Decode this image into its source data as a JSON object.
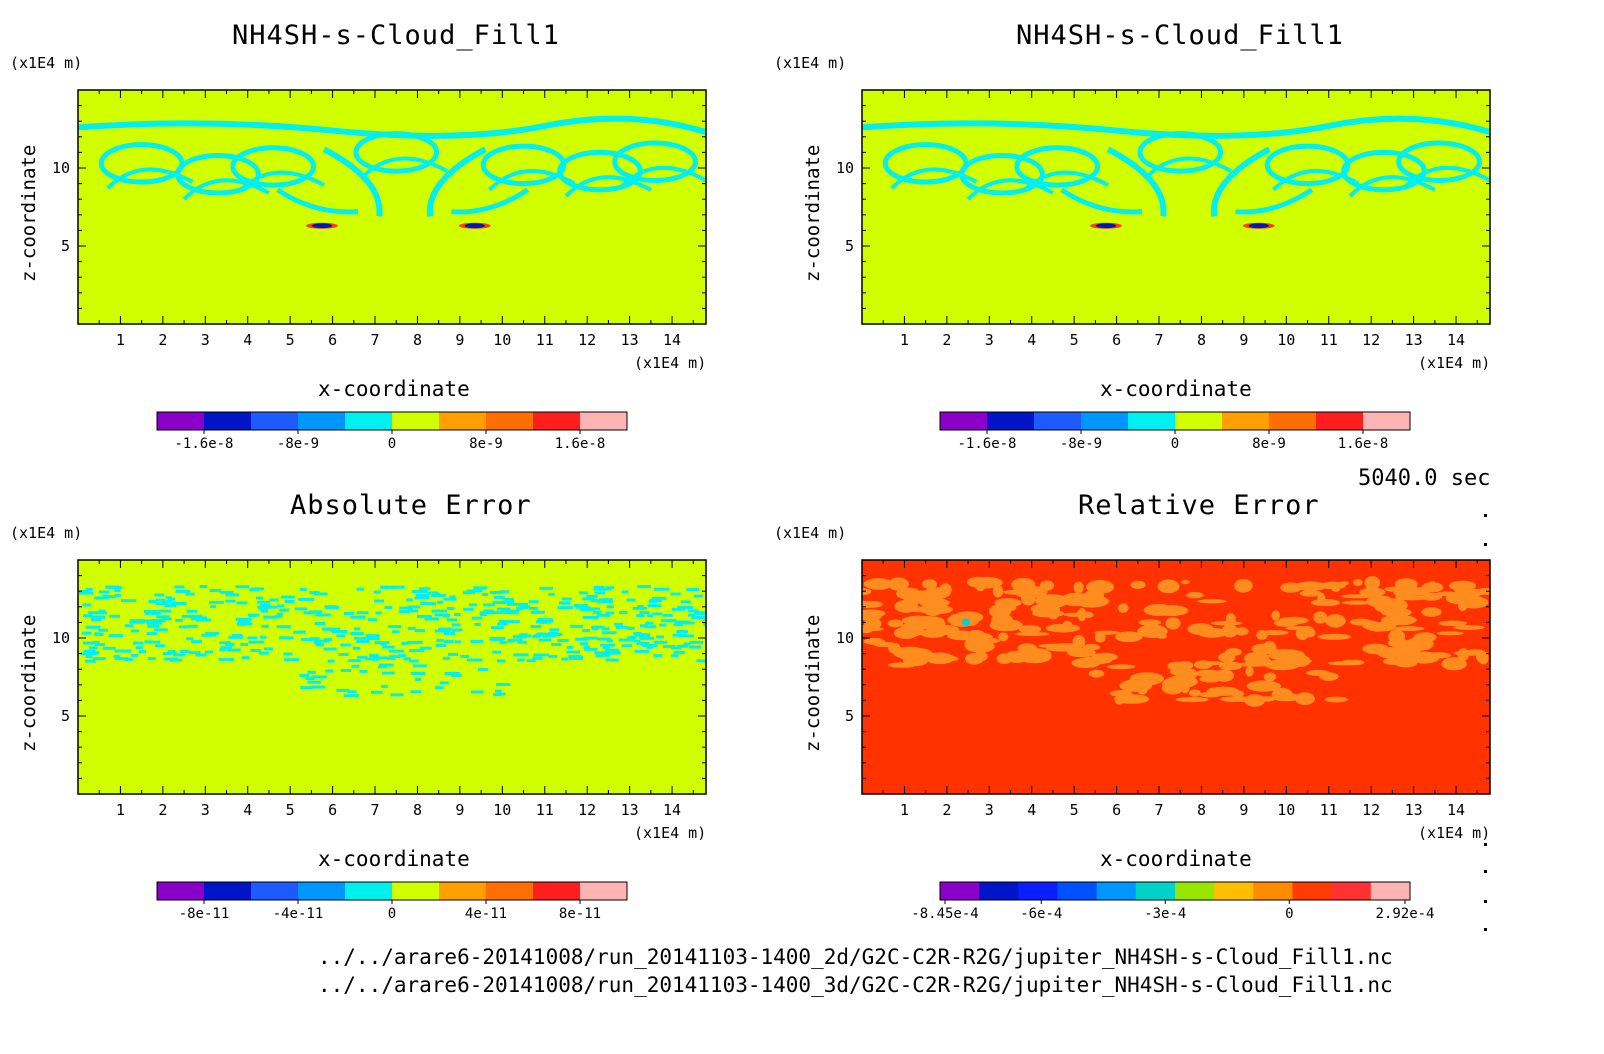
{
  "time_label": "5040.0 sec",
  "file_paths": [
    "../../arare6-20141008/run_20141103-1400_2d/G2C-C2R-R2G/jupiter_NH4SH-s-Cloud_Fill1.nc",
    "../../arare6-20141008/run_20141103-1400_3d/G2C-C2R-R2G/jupiter_NH4SH-s-Cloud_Fill1.nc"
  ],
  "palettes": {
    "main": [
      "#8a00c8",
      "#0014c8",
      "#1e5aff",
      "#0096ff",
      "#00f0f0",
      "#d2ff00",
      "#ffa000",
      "#ff6e00",
      "#ff1e1e",
      "#ffb4b4"
    ],
    "rel": [
      "#8a00c8",
      "#0014c8",
      "#0a1eff",
      "#0050ff",
      "#0096ff",
      "#00d2c8",
      "#96e600",
      "#ffbe00",
      "#ff8c00",
      "#ff3c00",
      "#ff3232",
      "#ffb4b4"
    ]
  },
  "chart_data": [
    {
      "type": "heatmap",
      "title": "NH4SH-s-Cloud_Fill1",
      "xlabel": "x-coordinate",
      "ylabel": "z-coordinate",
      "x_unit": "(x1E4 m)",
      "y_unit": "(x1E4 m)",
      "xlim": [
        0,
        14.8
      ],
      "ylim": [
        0,
        15
      ],
      "x_ticks": [
        "1",
        "2",
        "3",
        "4",
        "5",
        "6",
        "7",
        "8",
        "9",
        "10",
        "11",
        "12",
        "13",
        "14"
      ],
      "y_ticks": [
        "5",
        "10"
      ],
      "background_color": "#d2ff00",
      "pattern_color": "#00f0f0",
      "pattern": "cloud",
      "colorbar": {
        "palette": "main",
        "labels": [
          "-1.6e-8",
          "-8e-9",
          "0",
          "8e-9",
          "1.6e-8"
        ],
        "range": [
          -2e-08,
          2e-08
        ]
      }
    },
    {
      "type": "heatmap",
      "title": "NH4SH-s-Cloud_Fill1",
      "xlabel": "x-coordinate",
      "ylabel": "z-coordinate",
      "x_unit": "(x1E4 m)",
      "y_unit": "(x1E4 m)",
      "xlim": [
        0,
        14.8
      ],
      "ylim": [
        0,
        15
      ],
      "x_ticks": [
        "1",
        "2",
        "3",
        "4",
        "5",
        "6",
        "7",
        "8",
        "9",
        "10",
        "11",
        "12",
        "13",
        "14"
      ],
      "y_ticks": [
        "5",
        "10"
      ],
      "background_color": "#d2ff00",
      "pattern_color": "#00f0f0",
      "pattern": "cloud",
      "colorbar": {
        "palette": "main",
        "labels": [
          "-1.6e-8",
          "-8e-9",
          "0",
          "8e-9",
          "1.6e-8"
        ],
        "range": [
          -2e-08,
          2e-08
        ]
      }
    },
    {
      "type": "heatmap",
      "title": "Absolute Error",
      "xlabel": "x-coordinate",
      "ylabel": "z-coordinate",
      "x_unit": "(x1E4 m)",
      "y_unit": "(x1E4 m)",
      "xlim": [
        0,
        14.8
      ],
      "ylim": [
        0,
        15
      ],
      "x_ticks": [
        "1",
        "2",
        "3",
        "4",
        "5",
        "6",
        "7",
        "8",
        "9",
        "10",
        "11",
        "12",
        "13",
        "14"
      ],
      "y_ticks": [
        "5",
        "10"
      ],
      "background_color": "#d2ff00",
      "pattern_color": "#00f0f0",
      "pattern": "speckle",
      "colorbar": {
        "palette": "main",
        "labels": [
          "-8e-11",
          "-4e-11",
          "0",
          "4e-11",
          "8e-11"
        ],
        "range": [
          -1e-10,
          1e-10
        ]
      }
    },
    {
      "type": "heatmap",
      "title": "Relative Error",
      "xlabel": "x-coordinate",
      "ylabel": "z-coordinate",
      "x_unit": "(x1E4 m)",
      "y_unit": "(x1E4 m)",
      "xlim": [
        0,
        14.8
      ],
      "ylim": [
        0,
        15
      ],
      "x_ticks": [
        "1",
        "2",
        "3",
        "4",
        "5",
        "6",
        "7",
        "8",
        "9",
        "10",
        "11",
        "12",
        "13",
        "14"
      ],
      "y_ticks": [
        "5",
        "10"
      ],
      "background_color": "#ff3200",
      "pattern_color": "#ff8c1e",
      "pattern": "blotch",
      "colorbar": {
        "palette": "rel",
        "labels": [
          "-8.45e-4",
          "-6e-4",
          "-3e-4",
          "0",
          "2.92e-4"
        ],
        "range": [
          -0.000845,
          0.000292
        ]
      }
    }
  ]
}
